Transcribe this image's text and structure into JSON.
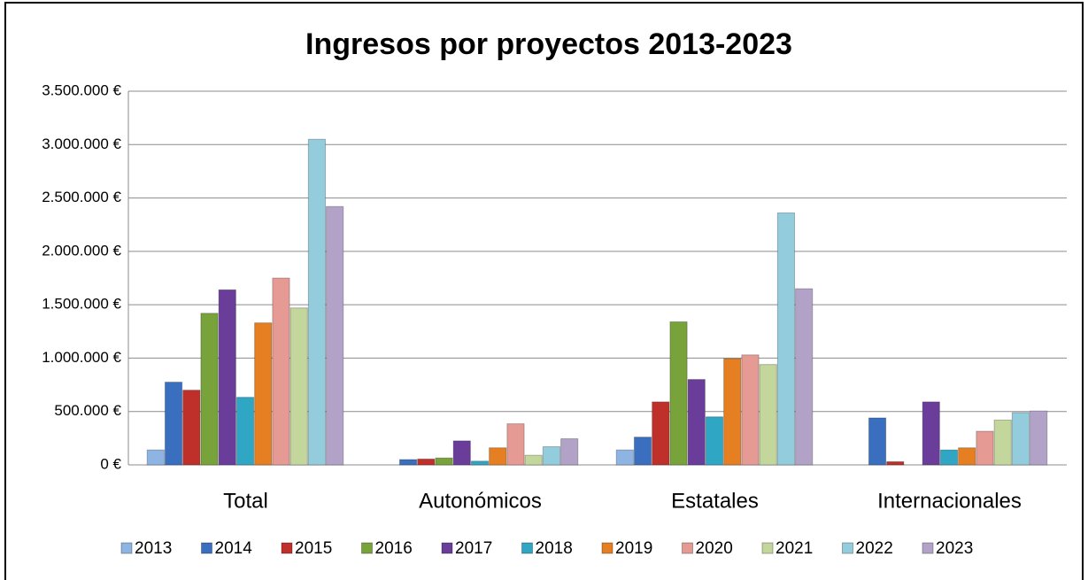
{
  "chart_data": {
    "type": "bar",
    "title": "Ingresos por proyectos 2013-2023",
    "categories": [
      "Total",
      "Autonómicos",
      "Estatales",
      "Internacionales"
    ],
    "series": [
      {
        "name": "2013",
        "color": "#8eb4e3",
        "values": [
          140000,
          0,
          140000,
          0
        ]
      },
      {
        "name": "2014",
        "color": "#3a6fc0",
        "values": [
          775000,
          50000,
          260000,
          440000
        ]
      },
      {
        "name": "2015",
        "color": "#c0302b",
        "values": [
          700000,
          55000,
          590000,
          30000
        ]
      },
      {
        "name": "2016",
        "color": "#77a33a",
        "values": [
          1420000,
          65000,
          1340000,
          0
        ]
      },
      {
        "name": "2017",
        "color": "#6a3d9a",
        "values": [
          1640000,
          225000,
          800000,
          590000
        ]
      },
      {
        "name": "2018",
        "color": "#2ea6c4",
        "values": [
          633000,
          35000,
          450000,
          140000
        ]
      },
      {
        "name": "2019",
        "color": "#e67e22",
        "values": [
          1330000,
          160000,
          995000,
          160000
        ]
      },
      {
        "name": "2020",
        "color": "#e59a94",
        "values": [
          1750000,
          385000,
          1030000,
          315000
        ]
      },
      {
        "name": "2021",
        "color": "#c3d69b",
        "values": [
          1470000,
          90000,
          940000,
          420000
        ]
      },
      {
        "name": "2022",
        "color": "#93cddd",
        "values": [
          3050000,
          170000,
          2360000,
          490000
        ]
      },
      {
        "name": "2023",
        "color": "#b3a2c7",
        "values": [
          2420000,
          245000,
          1650000,
          505000
        ]
      }
    ],
    "ylim": [
      0,
      3500000
    ],
    "yticks": [
      {
        "value": 0,
        "label": "0 €"
      },
      {
        "value": 500000,
        "label": "500.000 €"
      },
      {
        "value": 1000000,
        "label": "1.000.000 €"
      },
      {
        "value": 1500000,
        "label": "1.500.000 €"
      },
      {
        "value": 2000000,
        "label": "2.000.000 €"
      },
      {
        "value": 2500000,
        "label": "2.500.000 €"
      },
      {
        "value": 3000000,
        "label": "3.000.000 €"
      },
      {
        "value": 3500000,
        "label": "3.500.000 €"
      }
    ],
    "grid": true,
    "legend": "bottom"
  }
}
